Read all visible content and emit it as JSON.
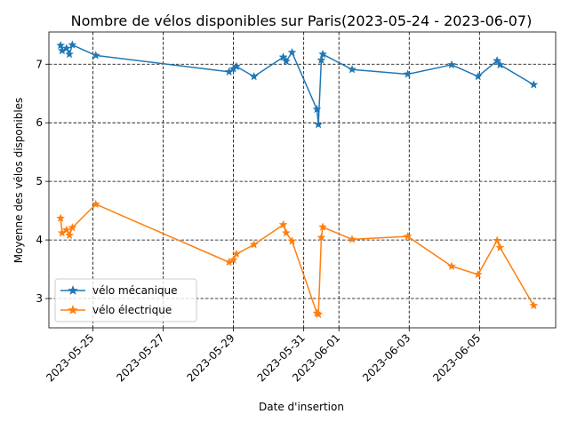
{
  "chart_data": {
    "type": "line",
    "title": "Nombre de vélos disponibles sur Paris(2023-05-24 - 2023-06-07)",
    "xlabel": "Date d'insertion",
    "ylabel": "Moyenne des vélos disponibles",
    "x_type": "date",
    "xlim": [
      "2023-05-23T18:00",
      "2023-06-07T04:00"
    ],
    "ylim": [
      2.5,
      7.55
    ],
    "x_ticks": [
      "2023-05-25",
      "2023-05-27",
      "2023-05-29",
      "2023-05-31",
      "2023-06-01",
      "2023-06-03",
      "2023-06-05"
    ],
    "y_ticks": [
      3,
      4,
      5,
      6,
      7
    ],
    "grid": true,
    "grid_style": "dashed",
    "legend_position": "lower-left",
    "marker": "star",
    "series": [
      {
        "name": "vélo mécanique",
        "color": "#1f77b4",
        "points": [
          [
            "2023-05-24T02:00",
            7.32
          ],
          [
            "2023-05-24T03:00",
            7.23
          ],
          [
            "2023-05-24T06:00",
            7.27
          ],
          [
            "2023-05-24T08:00",
            7.17
          ],
          [
            "2023-05-24T10:00",
            7.33
          ],
          [
            "2023-05-25T02:00",
            7.15
          ],
          [
            "2023-05-28T21:00",
            6.87
          ],
          [
            "2023-05-29T00:00",
            6.92
          ],
          [
            "2023-05-29T02:00",
            6.96
          ],
          [
            "2023-05-29T14:00",
            6.79
          ],
          [
            "2023-05-30T10:00",
            7.12
          ],
          [
            "2023-05-30T12:00",
            7.05
          ],
          [
            "2023-05-30T16:00",
            7.2
          ],
          [
            "2023-05-31T09:00",
            6.23
          ],
          [
            "2023-05-31T10:00",
            5.97
          ],
          [
            "2023-05-31T12:00",
            7.07
          ],
          [
            "2023-05-31T13:00",
            7.17
          ],
          [
            "2023-06-01T09:00",
            6.91
          ],
          [
            "2023-06-02T23:00",
            6.83
          ],
          [
            "2023-06-04T05:00",
            6.99
          ],
          [
            "2023-06-04T23:00",
            6.79
          ],
          [
            "2023-06-05T12:00",
            7.06
          ],
          [
            "2023-06-05T14:00",
            6.99
          ],
          [
            "2023-06-06T13:00",
            6.65
          ]
        ]
      },
      {
        "name": "vélo électrique",
        "color": "#ff7f0e",
        "points": [
          [
            "2023-05-24T02:00",
            4.37
          ],
          [
            "2023-05-24T03:00",
            4.12
          ],
          [
            "2023-05-24T06:00",
            4.17
          ],
          [
            "2023-05-24T08:00",
            4.08
          ],
          [
            "2023-05-24T10:00",
            4.21
          ],
          [
            "2023-05-25T02:00",
            4.61
          ],
          [
            "2023-05-28T21:00",
            3.62
          ],
          [
            "2023-05-29T00:00",
            3.66
          ],
          [
            "2023-05-29T02:00",
            3.76
          ],
          [
            "2023-05-29T14:00",
            3.92
          ],
          [
            "2023-05-30T10:00",
            4.26
          ],
          [
            "2023-05-30T12:00",
            4.12
          ],
          [
            "2023-05-30T16:00",
            3.98
          ],
          [
            "2023-05-31T09:00",
            2.75
          ],
          [
            "2023-05-31T10:00",
            2.73
          ],
          [
            "2023-05-31T12:00",
            4.04
          ],
          [
            "2023-05-31T13:00",
            4.22
          ],
          [
            "2023-06-01T09:00",
            4.01
          ],
          [
            "2023-06-02T23:00",
            4.06
          ],
          [
            "2023-06-04T05:00",
            3.55
          ],
          [
            "2023-06-04T23:00",
            3.41
          ],
          [
            "2023-06-05T12:00",
            3.99
          ],
          [
            "2023-06-05T14:00",
            3.87
          ],
          [
            "2023-06-06T13:00",
            2.88
          ]
        ]
      }
    ]
  }
}
